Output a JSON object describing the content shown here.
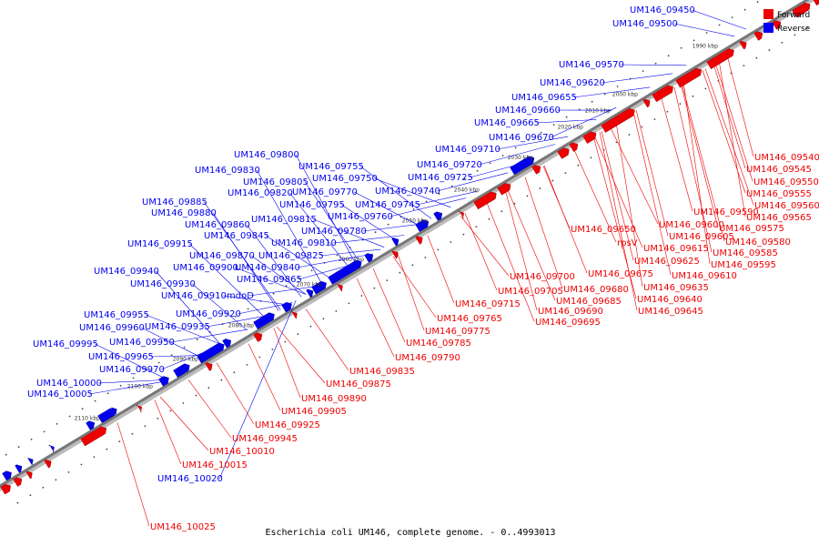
{
  "caption": "Escherichia coli UM146, complete genome. - 0..4993013",
  "legend": [
    {
      "label": "Forward",
      "color": "#ee0000"
    },
    {
      "label": "Reverse",
      "color": "#0000ee"
    }
  ],
  "colors": {
    "forward": "#ee0000",
    "reverse": "#0000ee",
    "backbone": "#888888"
  },
  "ticks": [
    "1990 kbp",
    "2000 kbp",
    "2010 kbp",
    "2020 kbp",
    "2030 kbp",
    "2040 kbp",
    "2050 kbp",
    "2060 kbp",
    "2070 kbp",
    "2080 kbp",
    "2090 kbp",
    "2100 kbp",
    "2110 kbp"
  ],
  "reverse_labels": [
    "UM146_09450",
    "UM146_09500",
    "UM146_09570",
    "UM146_09620",
    "UM146_09655",
    "UM146_09660",
    "UM146_09665",
    "UM146_09670",
    "UM146_09710",
    "UM146_09720",
    "UM146_09725",
    "UM146_09800",
    "UM146_09830",
    "UM146_09755",
    "UM146_09750",
    "UM146_09805",
    "UM146_09820",
    "UM146_09770",
    "UM146_09740",
    "UM146_09885",
    "UM146_09795",
    "UM146_09745",
    "UM146_09880",
    "UM146_09815",
    "UM146_09760",
    "UM146_09860",
    "UM146_09780",
    "UM146_09845",
    "UM146_09810",
    "UM146_09915",
    "UM146_09870",
    "UM146_09825",
    "UM146_09940",
    "UM146_09900",
    "UM146_09840",
    "UM146_09930",
    "UM146_09865",
    "UM146_09910",
    "mdoD",
    "UM146_09955",
    "UM146_09920",
    "UM146_09960",
    "UM146_09935",
    "UM146_09995",
    "UM146_09950",
    "UM146_09965",
    "UM146_09970",
    "UM146_10000",
    "UM146_10005",
    "UM146_10020"
  ],
  "forward_labels": [
    "UM146_09540",
    "UM146_09545",
    "UM146_09550",
    "UM146_09555",
    "UM146_09560",
    "UM146_09565",
    "UM146_09590",
    "UM146_09575",
    "UM146_09580",
    "UM146_09600",
    "UM146_09650",
    "UM146_09605",
    "UM146_09585",
    "rpsV",
    "UM146_09615",
    "UM146_09595",
    "UM146_09625",
    "UM146_09610",
    "UM146_09675",
    "UM146_09700",
    "UM146_09635",
    "UM146_09705",
    "UM146_09680",
    "UM146_09640",
    "UM146_09685",
    "UM146_09715",
    "UM146_09690",
    "UM146_09645",
    "UM146_09765",
    "UM146_09695",
    "UM146_09775",
    "UM146_09785",
    "UM146_09790",
    "UM146_09835",
    "UM146_09875",
    "UM146_09890",
    "UM146_09905",
    "UM146_09925",
    "UM146_09945",
    "UM146_10010",
    "UM146_10015",
    "UM146_10025"
  ]
}
